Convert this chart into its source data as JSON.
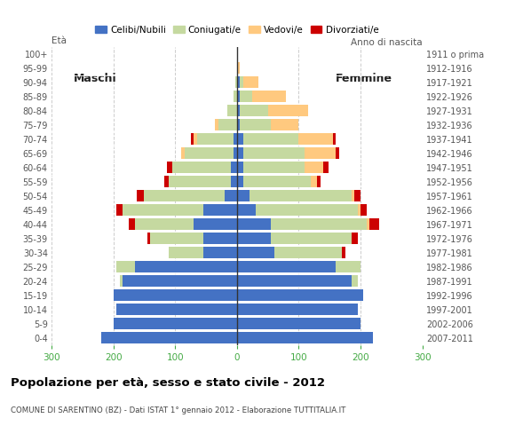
{
  "age_groups": [
    "0-4",
    "5-9",
    "10-14",
    "15-19",
    "20-24",
    "25-29",
    "30-34",
    "35-39",
    "40-44",
    "45-49",
    "50-54",
    "55-59",
    "60-64",
    "65-69",
    "70-74",
    "75-79",
    "80-84",
    "85-89",
    "90-94",
    "95-99",
    "100+"
  ],
  "birth_years": [
    "2007-2011",
    "2002-2006",
    "1997-2001",
    "1992-1996",
    "1987-1991",
    "1982-1986",
    "1977-1981",
    "1972-1976",
    "1967-1971",
    "1962-1966",
    "1957-1961",
    "1952-1956",
    "1947-1951",
    "1942-1946",
    "1937-1941",
    "1932-1936",
    "1927-1931",
    "1922-1926",
    "1917-1921",
    "1912-1916",
    "1911 o prima"
  ],
  "male": {
    "celibe": [
      220,
      200,
      195,
      200,
      185,
      165,
      55,
      55,
      70,
      55,
      20,
      10,
      10,
      5,
      5,
      0,
      0,
      0,
      0,
      0,
      0
    ],
    "coniugato": [
      0,
      0,
      0,
      0,
      5,
      30,
      55,
      85,
      95,
      130,
      130,
      100,
      95,
      80,
      60,
      30,
      15,
      5,
      2,
      0,
      0
    ],
    "vedovo": [
      0,
      0,
      0,
      0,
      0,
      0,
      0,
      0,
      0,
      0,
      0,
      0,
      0,
      5,
      5,
      5,
      0,
      0,
      0,
      0,
      0
    ],
    "divorziato": [
      0,
      0,
      0,
      0,
      0,
      0,
      0,
      5,
      10,
      10,
      12,
      8,
      8,
      0,
      5,
      0,
      0,
      0,
      0,
      0,
      0
    ]
  },
  "female": {
    "nubile": [
      220,
      200,
      195,
      205,
      185,
      160,
      60,
      55,
      55,
      30,
      20,
      10,
      10,
      10,
      10,
      5,
      5,
      5,
      5,
      0,
      0
    ],
    "coniugata": [
      0,
      0,
      0,
      0,
      10,
      40,
      110,
      130,
      155,
      165,
      165,
      110,
      100,
      100,
      90,
      50,
      45,
      20,
      5,
      0,
      0
    ],
    "vedova": [
      0,
      0,
      0,
      0,
      0,
      0,
      0,
      0,
      5,
      5,
      5,
      10,
      30,
      50,
      55,
      45,
      65,
      55,
      25,
      5,
      0
    ],
    "divorziata": [
      0,
      0,
      0,
      0,
      0,
      0,
      5,
      10,
      15,
      10,
      10,
      5,
      8,
      5,
      5,
      0,
      0,
      0,
      0,
      0,
      0
    ]
  },
  "colors": {
    "celibe": "#4472c4",
    "coniugato": "#c5d9a0",
    "vedovo": "#ffc97f",
    "divorziato": "#cc0000"
  },
  "xlim": 300,
  "title": "Popolazione per età, sesso e stato civile - 2012",
  "subtitle": "COMUNE DI SARENTINO (BZ) - Dati ISTAT 1° gennaio 2012 - Elaborazione TUTTITALIA.IT",
  "ylabel_left": "Età",
  "ylabel_right": "Anno di nascita",
  "label_maschi": "Maschi",
  "label_femmine": "Femmine",
  "legend_labels": [
    "Celibi/Nubili",
    "Coniugati/e",
    "Vedovi/e",
    "Divorziati/e"
  ],
  "background_color": "#ffffff",
  "plot_bg_color": "#ffffff",
  "grid_color": "#cccccc",
  "tick_color": "#44aa44",
  "title_color": "#000000",
  "subtitle_color": "#444444"
}
